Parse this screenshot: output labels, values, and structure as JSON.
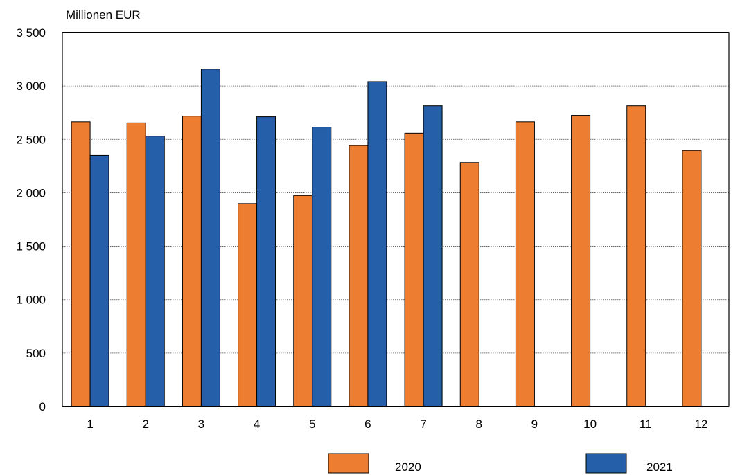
{
  "chart_data": {
    "type": "bar",
    "unit_label": "Millionen EUR",
    "categories": [
      "1",
      "2",
      "3",
      "4",
      "5",
      "6",
      "7",
      "8",
      "9",
      "10",
      "11",
      "12"
    ],
    "series": [
      {
        "name": "2020",
        "color": "#ed7d31",
        "values": [
          2665,
          2655,
          2718,
          1900,
          1975,
          2443,
          2558,
          2283,
          2665,
          2725,
          2815,
          2397
        ]
      },
      {
        "name": "2021",
        "color": "#255ea9",
        "values": [
          2350,
          2530,
          3158,
          2712,
          2615,
          3040,
          2815,
          null,
          null,
          null,
          null,
          null
        ]
      }
    ],
    "y_ticks": [
      {
        "value": 0,
        "label": "0"
      },
      {
        "value": 500,
        "label": "500"
      },
      {
        "value": 1000,
        "label": "1 000"
      },
      {
        "value": 1500,
        "label": "1 500"
      },
      {
        "value": 2000,
        "label": "2 000"
      },
      {
        "value": 2500,
        "label": "2 500"
      },
      {
        "value": 3000,
        "label": "3 000"
      },
      {
        "value": 3500,
        "label": "3 500"
      }
    ],
    "ylim": [
      0,
      3500
    ],
    "grid": true,
    "legend_position": "bottom"
  }
}
